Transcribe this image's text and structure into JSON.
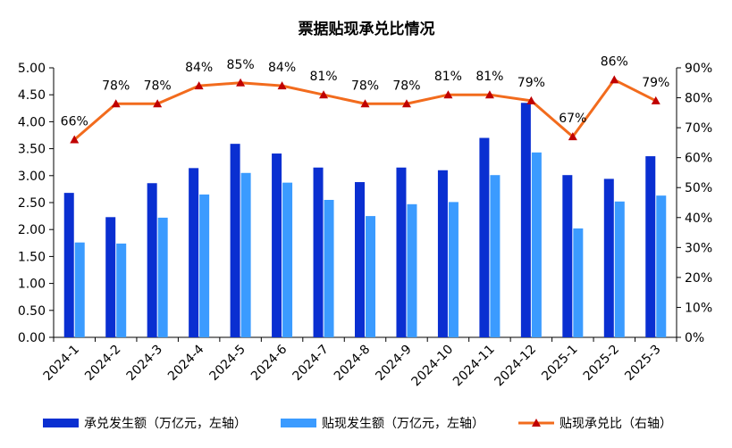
{
  "chart_data": {
    "type": "bar+line",
    "title": "票据贴现承兑比情况",
    "categories": [
      "2024-1",
      "2024-2",
      "2024-3",
      "2024-4",
      "2024-5",
      "2024-6",
      "2024-7",
      "2024-8",
      "2024-9",
      "2024-10",
      "2024-11",
      "2024-12",
      "2025-1",
      "2025-2",
      "2025-3"
    ],
    "series": [
      {
        "name": "承兑发生额（万亿元，左轴）",
        "type": "bar",
        "axis": "left",
        "color": "#0a2fd1",
        "values": [
          2.68,
          2.23,
          2.86,
          3.14,
          3.59,
          3.41,
          3.15,
          2.88,
          3.15,
          3.1,
          3.7,
          4.35,
          3.01,
          2.94,
          3.36
        ]
      },
      {
        "name": "贴现发生额（万亿元，左轴）",
        "type": "bar",
        "axis": "left",
        "color": "#3b9bff",
        "values": [
          1.76,
          1.74,
          2.22,
          2.65,
          3.05,
          2.87,
          2.55,
          2.25,
          2.47,
          2.51,
          3.01,
          3.43,
          2.02,
          2.52,
          2.63
        ]
      },
      {
        "name": "贴现承兑比（右轴）",
        "type": "line",
        "axis": "right",
        "color": "#f26b1d",
        "marker_color": "#c00000",
        "values": [
          66,
          78,
          78,
          84,
          85,
          84,
          81,
          78,
          78,
          81,
          81,
          79,
          67,
          86,
          79
        ],
        "labels": [
          "66%",
          "78%",
          "78%",
          "84%",
          "85%",
          "84%",
          "81%",
          "78%",
          "78%",
          "81%",
          "81%",
          "79%",
          "67%",
          "86%",
          "79%"
        ]
      }
    ],
    "y_left": {
      "min": 0,
      "max": 5,
      "ticks": [
        "0.00",
        "0.50",
        "1.00",
        "1.50",
        "2.00",
        "2.50",
        "3.00",
        "3.50",
        "4.00",
        "4.50",
        "5.00"
      ]
    },
    "y_right": {
      "min": 0,
      "max": 90,
      "ticks": [
        "0%",
        "10%",
        "20%",
        "30%",
        "40%",
        "50%",
        "60%",
        "70%",
        "80%",
        "90%"
      ]
    },
    "grid": false,
    "legend_position": "bottom"
  }
}
